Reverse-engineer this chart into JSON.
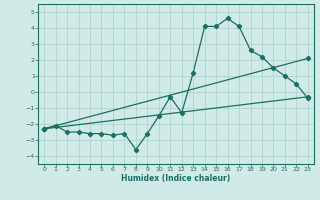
{
  "bg_color": "#d0ebe7",
  "grid_color": "#b0d4ce",
  "line_color": "#1a6e64",
  "xlabel": "Humidex (Indice chaleur)",
  "xlim": [
    -0.5,
    23.5
  ],
  "ylim": [
    -4.5,
    5.5
  ],
  "xticks": [
    0,
    1,
    2,
    3,
    4,
    5,
    6,
    7,
    8,
    9,
    10,
    11,
    12,
    13,
    14,
    15,
    16,
    17,
    18,
    19,
    20,
    21,
    22,
    23
  ],
  "yticks": [
    -4,
    -3,
    -2,
    -1,
    0,
    1,
    2,
    3,
    4,
    5
  ],
  "line1_x": [
    0,
    1,
    2,
    3,
    4,
    5,
    6,
    7,
    8,
    9,
    10,
    11,
    12,
    13,
    14,
    15,
    16,
    17,
    18,
    19,
    20,
    21,
    22,
    23
  ],
  "line1_y": [
    -2.3,
    -2.1,
    -2.5,
    -2.5,
    -2.6,
    -2.6,
    -2.7,
    -2.6,
    -3.6,
    -2.6,
    -1.5,
    -0.3,
    -1.3,
    1.2,
    4.1,
    4.1,
    4.6,
    4.1,
    2.6,
    2.2,
    1.5,
    1.0,
    0.5,
    -0.4
  ],
  "line2_x": [
    0,
    23
  ],
  "line2_y": [
    -2.3,
    -0.3
  ],
  "line3_x": [
    0,
    23
  ],
  "line3_y": [
    -2.3,
    2.1
  ],
  "marker": "D",
  "markersize": 2.2,
  "linewidth": 0.9
}
